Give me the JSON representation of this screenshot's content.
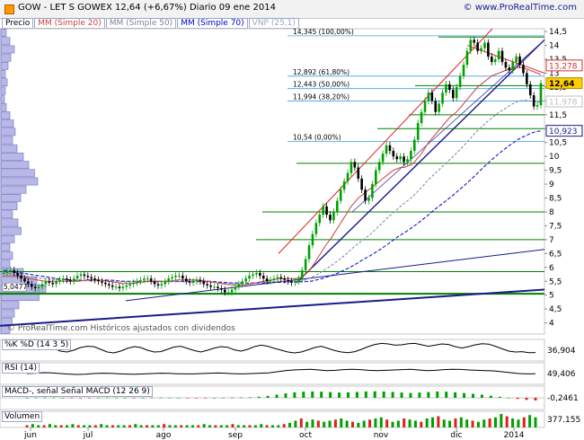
{
  "header": {
    "title": "GOW - LET S GOWEX    12,64 (+6,67%)    Diario  09 ene 2014",
    "brand": "© www.ProRealTime.com"
  },
  "legend": {
    "price": "Precio",
    "sma20": "MM (Simple 20)",
    "sma50": "MM (Simple 50)",
    "sma70": "MM (Simple 70)",
    "vnp": "VNP (25,1)"
  },
  "watermark": "© ProRealTime.com   Históricos ajustados con dividendos",
  "colors": {
    "up": "#00a000",
    "down": "#000000",
    "accent": "#1a1a8a",
    "sma20": "#d04040",
    "sma50": "#8080a0",
    "sma70": "#0000cc",
    "last": "#ffcc00"
  },
  "chart_data": [
    {
      "type": "candlestick",
      "ylim": [
        3.6,
        14.6
      ],
      "yticks": [
        "14,5",
        "14",
        "13,5",
        "13",
        "12,5",
        "12",
        "11,5",
        "11",
        "10,5",
        "10",
        "9,5",
        "9",
        "8,5",
        "8",
        "7,5",
        "7",
        "6,5",
        "6",
        "5,5",
        "5",
        "4,5",
        "4"
      ],
      "ytick_values": [
        14.5,
        14,
        13.5,
        13,
        12.5,
        12,
        11.5,
        11,
        10.5,
        10,
        9.5,
        9,
        8.5,
        8,
        7.5,
        7,
        6.5,
        6,
        5.5,
        5,
        4.5,
        4
      ],
      "xlabels": [
        "jun",
        "jul",
        "ago",
        "sep",
        "oct",
        "nov",
        "dic",
        "2014"
      ],
      "last_value": "12,64",
      "fibonacci": [
        {
          "label": "14,345 (100,00%)",
          "value": 14.345
        },
        {
          "label": "12,892 (61,80%)",
          "value": 12.892
        },
        {
          "label": "12,443 (50,00%)",
          "value": 12.443
        },
        {
          "label": "11,994 (38,20%)",
          "value": 11.994
        },
        {
          "label": "10,54 (0,00%)",
          "value": 10.54
        }
      ],
      "price_boxes": [
        {
          "label": "13,278",
          "value": 13.278,
          "color": "#d03030"
        },
        {
          "label": "11,978",
          "value": 11.978,
          "color": "#c0c0c0"
        },
        {
          "label": "10,923",
          "value": 10.923,
          "color": "#1a1a8a"
        }
      ],
      "support_label": "5,0477",
      "closes": [
        5.8,
        5.85,
        5.9,
        5.8,
        5.7,
        5.6,
        5.5,
        5.4,
        5.3,
        5.25,
        5.3,
        5.4,
        5.5,
        5.45,
        5.4,
        5.5,
        5.55,
        5.6,
        5.55,
        5.5,
        5.6,
        5.7,
        5.75,
        5.7,
        5.65,
        5.6,
        5.55,
        5.5,
        5.45,
        5.4,
        5.35,
        5.3,
        5.3,
        5.25,
        5.3,
        5.35,
        5.4,
        5.45,
        5.5,
        5.55,
        5.6,
        5.6,
        5.5,
        5.4,
        5.35,
        5.4,
        5.5,
        5.6,
        5.65,
        5.7,
        5.7,
        5.6,
        5.5,
        5.45,
        5.5,
        5.55,
        5.5,
        5.4,
        5.35,
        5.3,
        5.3,
        5.25,
        5.2,
        5.1,
        5.1,
        5.2,
        5.3,
        5.4,
        5.5,
        5.6,
        5.7,
        5.75,
        5.8,
        5.7,
        5.6,
        5.5,
        5.55,
        5.6,
        5.65,
        5.6,
        5.55,
        5.5,
        5.45,
        5.5,
        5.6,
        5.9,
        6.3,
        6.8,
        7.2,
        7.6,
        7.9,
        8.2,
        7.9,
        7.7,
        8.0,
        8.4,
        8.8,
        9.1,
        9.4,
        9.8,
        9.6,
        9.2,
        8.8,
        8.4,
        8.5,
        9.0,
        9.5,
        9.8,
        10.1,
        10.4,
        10.2,
        10.0,
        9.9,
        10.0,
        9.8,
        9.9,
        10.2,
        10.6,
        11.2,
        11.6,
        12.0,
        12.3,
        12.0,
        11.6,
        11.9,
        12.3,
        12.6,
        12.4,
        12.1,
        12.5,
        12.9,
        13.3,
        13.8,
        14.2,
        14.1,
        13.8,
        13.9,
        14.1,
        13.6,
        13.4,
        13.5,
        13.8,
        13.4,
        13.2,
        13.1,
        13.4,
        13.6,
        13.3,
        13.0,
        12.6,
        12.2,
        11.8,
        11.85,
        12.64
      ],
      "sma20": [
        5.7,
        5.7,
        5.7,
        5.7,
        5.68,
        5.66,
        5.64,
        5.6,
        5.58,
        5.56,
        5.54,
        5.52,
        5.5,
        5.5,
        5.5,
        5.5,
        5.5,
        5.5,
        5.5,
        5.5,
        5.5,
        5.5,
        5.52,
        5.54,
        5.55,
        5.56,
        5.56,
        5.55,
        5.54,
        5.52,
        5.5,
        5.48,
        5.46,
        5.44,
        5.42,
        5.42,
        5.42,
        5.42,
        5.44,
        5.46,
        5.48,
        5.5,
        5.5,
        5.5,
        5.5,
        5.5,
        5.5,
        5.5,
        5.52,
        5.54,
        5.55,
        5.55,
        5.55,
        5.55,
        5.55,
        5.55,
        5.54,
        5.52,
        5.5,
        5.48,
        5.46,
        5.44,
        5.42,
        5.4,
        5.38,
        5.37,
        5.36,
        5.36,
        5.37,
        5.38,
        5.4,
        5.42,
        5.45,
        5.48,
        5.5,
        5.52,
        5.54,
        5.56,
        5.58,
        5.6,
        5.6,
        5.6,
        5.6,
        5.6,
        5.62,
        5.66,
        5.75,
        5.88,
        6.05,
        6.25,
        6.45,
        6.65,
        6.85,
        7.0,
        7.2,
        7.4,
        7.6,
        7.8,
        8.0,
        8.2,
        8.35,
        8.5,
        8.6,
        8.7,
        8.8,
        8.9,
        9.0,
        9.1,
        9.2,
        9.3,
        9.4,
        9.5,
        9.55,
        9.6,
        9.6,
        9.65,
        9.7,
        9.8,
        9.95,
        10.1,
        10.3,
        10.5,
        10.65,
        10.8,
        10.95,
        11.1,
        11.25,
        11.4,
        11.5,
        11.6,
        11.75,
        11.9,
        12.05,
        12.2,
        12.35,
        12.5,
        12.6,
        12.7,
        12.8,
        12.9,
        12.95,
        13.0,
        13.05,
        13.1,
        13.15,
        13.2,
        13.2,
        13.2,
        13.2,
        13.15,
        13.1,
        13.05,
        13.0,
        12.95
      ],
      "sma50": [
        5.8,
        5.8,
        5.78,
        5.76,
        5.74,
        5.72,
        5.7,
        5.68,
        5.66,
        5.64,
        5.62,
        5.6,
        5.6,
        5.58,
        5.57,
        5.56,
        5.55,
        5.54,
        5.53,
        5.52,
        5.52,
        5.52,
        5.52,
        5.52,
        5.52,
        5.52,
        5.52,
        5.52,
        5.52,
        5.52,
        5.51,
        5.5,
        5.5,
        5.49,
        5.48,
        5.48,
        5.48,
        5.48,
        5.48,
        5.48,
        5.48,
        5.48,
        5.48,
        5.48,
        5.48,
        5.48,
        5.48,
        5.48,
        5.48,
        5.48,
        5.48,
        5.48,
        5.48,
        5.48,
        5.48,
        5.48,
        5.48,
        5.48,
        5.48,
        5.47,
        5.46,
        5.45,
        5.44,
        5.43,
        5.42,
        5.42,
        5.42,
        5.42,
        5.42,
        5.42,
        5.42,
        5.43,
        5.44,
        5.45,
        5.46,
        5.47,
        5.48,
        5.49,
        5.5,
        5.5,
        5.5,
        5.5,
        5.5,
        5.5,
        5.5,
        5.52,
        5.55,
        5.6,
        5.66,
        5.73,
        5.8,
        5.88,
        5.96,
        6.04,
        6.13,
        6.22,
        6.32,
        6.42,
        6.53,
        6.65,
        6.76,
        6.86,
        6.96,
        7.05,
        7.15,
        7.26,
        7.38,
        7.5,
        7.62,
        7.75,
        7.86,
        7.97,
        8.08,
        8.2,
        8.3,
        8.4,
        8.5,
        8.62,
        8.75,
        8.88,
        9.02,
        9.16,
        9.28,
        9.4,
        9.52,
        9.64,
        9.76,
        9.88,
        10.0,
        10.12,
        10.25,
        10.38,
        10.52,
        10.66,
        10.8,
        10.93,
        11.05,
        11.17,
        11.28,
        11.38,
        11.48,
        11.58,
        11.66,
        11.74,
        11.82,
        11.9,
        11.96,
        12.0,
        12.02,
        12.02,
        12.0,
        11.98,
        11.96,
        11.95
      ],
      "sma70": [
        5.9,
        5.88,
        5.86,
        5.84,
        5.82,
        5.8,
        5.78,
        5.76,
        5.74,
        5.72,
        5.7,
        5.68,
        5.66,
        5.64,
        5.62,
        5.6,
        5.58,
        5.57,
        5.56,
        5.55,
        5.54,
        5.54,
        5.54,
        5.54,
        5.54,
        5.54,
        5.54,
        5.54,
        5.54,
        5.54,
        5.54,
        5.53,
        5.52,
        5.51,
        5.5,
        5.5,
        5.5,
        5.5,
        5.5,
        5.5,
        5.5,
        5.5,
        5.5,
        5.5,
        5.5,
        5.5,
        5.5,
        5.5,
        5.5,
        5.5,
        5.5,
        5.5,
        5.5,
        5.5,
        5.5,
        5.5,
        5.5,
        5.5,
        5.5,
        5.49,
        5.48,
        5.47,
        5.46,
        5.45,
        5.44,
        5.44,
        5.44,
        5.44,
        5.44,
        5.44,
        5.44,
        5.44,
        5.44,
        5.44,
        5.45,
        5.45,
        5.46,
        5.46,
        5.47,
        5.47,
        5.48,
        5.48,
        5.48,
        5.48,
        5.48,
        5.49,
        5.5,
        5.52,
        5.55,
        5.58,
        5.62,
        5.66,
        5.7,
        5.75,
        5.8,
        5.86,
        5.92,
        5.98,
        6.05,
        6.12,
        6.2,
        6.28,
        6.35,
        6.42,
        6.5,
        6.58,
        6.66,
        6.75,
        6.84,
        6.94,
        7.03,
        7.12,
        7.2,
        7.28,
        7.37,
        7.46,
        7.55,
        7.65,
        7.75,
        7.85,
        7.96,
        8.07,
        8.17,
        8.27,
        8.37,
        8.47,
        8.57,
        8.68,
        8.79,
        8.9,
        9.01,
        9.13,
        9.25,
        9.37,
        9.5,
        9.62,
        9.74,
        9.86,
        9.97,
        10.08,
        10.18,
        10.28,
        10.38,
        10.47,
        10.56,
        10.64,
        10.7,
        10.76,
        10.82,
        10.87,
        10.9,
        10.92
      ]
    },
    {
      "type": "line",
      "title": "%K  %D (14 3 5)",
      "last_value": "36,904",
      "ylim": [
        0,
        100
      ],
      "yticks": [
        "100"
      ],
      "series": [
        {
          "name": "%K",
          "values": [
            60,
            70,
            80,
            75,
            60,
            45,
            40,
            50,
            65,
            72,
            70,
            55,
            40,
            35,
            45,
            60,
            70,
            65,
            50,
            40,
            42,
            55,
            68,
            72,
            60,
            48,
            40,
            50,
            62,
            70,
            66,
            52,
            45,
            55,
            70,
            78,
            72,
            60,
            50,
            40,
            35,
            40,
            52,
            65,
            72,
            60,
            48,
            40,
            36,
            42,
            55,
            70,
            82,
            88,
            85,
            78,
            80,
            86,
            88,
            80,
            72,
            78,
            85,
            82,
            70,
            62,
            70,
            80,
            86,
            84,
            72,
            58,
            45,
            40,
            42,
            36,
            37
          ]
        }
      ]
    },
    {
      "type": "line",
      "title": "RSI (14)",
      "last_value": "49,406",
      "ylim": [
        0,
        100
      ],
      "series": [
        {
          "name": "RSI (14)",
          "values": [
            50,
            52,
            55,
            54,
            50,
            47,
            45,
            46,
            50,
            52,
            51,
            49,
            47,
            46,
            48,
            50,
            52,
            51,
            49,
            48,
            48,
            50,
            52,
            53,
            51,
            49,
            48,
            50,
            52,
            54,
            60,
            66,
            70,
            72,
            74,
            70,
            66,
            68,
            72,
            74,
            72,
            68,
            66,
            68,
            70,
            72,
            74,
            70,
            66,
            68,
            72,
            74,
            73,
            70,
            68,
            66,
            65,
            60,
            55,
            50,
            48,
            49
          ]
        }
      ]
    },
    {
      "type": "bar",
      "title": "MACD-, señal  Señal  MACD (12 26 9)",
      "last_value": "-0,2461",
      "ylim": [
        -1,
        1
      ],
      "series": [
        {
          "name": "MACD",
          "values": [
            0,
            0.02,
            0.03,
            0.02,
            0,
            -0.02,
            -0.03,
            -0.02,
            0,
            0.02,
            0.01,
            0,
            -0.01,
            0,
            0.01,
            0.02,
            0.01,
            0,
            -0.01,
            -0.02,
            -0.01,
            0,
            0.01,
            0.02,
            0.03,
            0.05,
            0.1,
            0.18,
            0.3,
            0.42,
            0.52,
            0.58,
            0.6,
            0.58,
            0.55,
            0.5,
            0.52,
            0.56,
            0.6,
            0.62,
            0.6,
            0.56,
            0.5,
            0.46,
            0.5,
            0.55,
            0.6,
            0.58,
            0.52,
            0.45,
            0.38,
            0.3,
            0.2,
            0.1,
            0,
            -0.1,
            -0.2,
            -0.25
          ]
        }
      ]
    },
    {
      "type": "bar",
      "title": "Volumen",
      "last_value": "377.155",
      "series": [
        {
          "name": "Volumen",
          "values": [
            2,
            3,
            2,
            2,
            3,
            2,
            2,
            2,
            3,
            2,
            2,
            2,
            2,
            3,
            2,
            2,
            2,
            2,
            2,
            3,
            2,
            2,
            2,
            2,
            3,
            2,
            2,
            2,
            2,
            2,
            2,
            3,
            2,
            2,
            2,
            2,
            3,
            2,
            2,
            2,
            2,
            3,
            2,
            2,
            2,
            3,
            4,
            6,
            8,
            5,
            7,
            6,
            5,
            6,
            7,
            8,
            6,
            5,
            4,
            6,
            7,
            8,
            9,
            7,
            5,
            6,
            8,
            7,
            6,
            5,
            8,
            9,
            10,
            7,
            6,
            8,
            9,
            7,
            6,
            5,
            7,
            8,
            9,
            12,
            10,
            8,
            7,
            9,
            11,
            9
          ]
        }
      ]
    }
  ],
  "volume_profile": [
    0.12,
    0.2,
    0.3,
    0.22,
    0.16,
    0.1,
    0.14,
    0.1,
    0.08,
    0.12,
    0.2,
    0.28,
    0.32,
    0.26,
    0.36,
    0.5,
    0.62,
    0.75,
    0.82,
    0.56,
    0.44,
    0.36,
    0.26,
    0.38,
    0.45,
    0.3,
    0.2,
    0.26,
    0.2,
    0.5,
    0.8,
    1.0,
    0.85,
    0.4,
    0.3,
    0.25,
    0.2
  ]
}
